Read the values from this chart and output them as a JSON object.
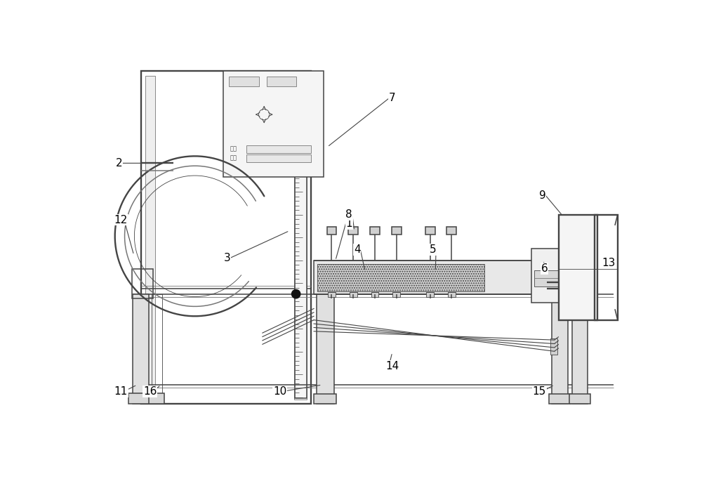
{
  "bg": "#ffffff",
  "dc": "#444444",
  "lc": "#777777",
  "fg": "#d8d8d8",
  "lw1": 0.6,
  "lw2": 1.1,
  "lw3": 1.7,
  "fs": 11
}
